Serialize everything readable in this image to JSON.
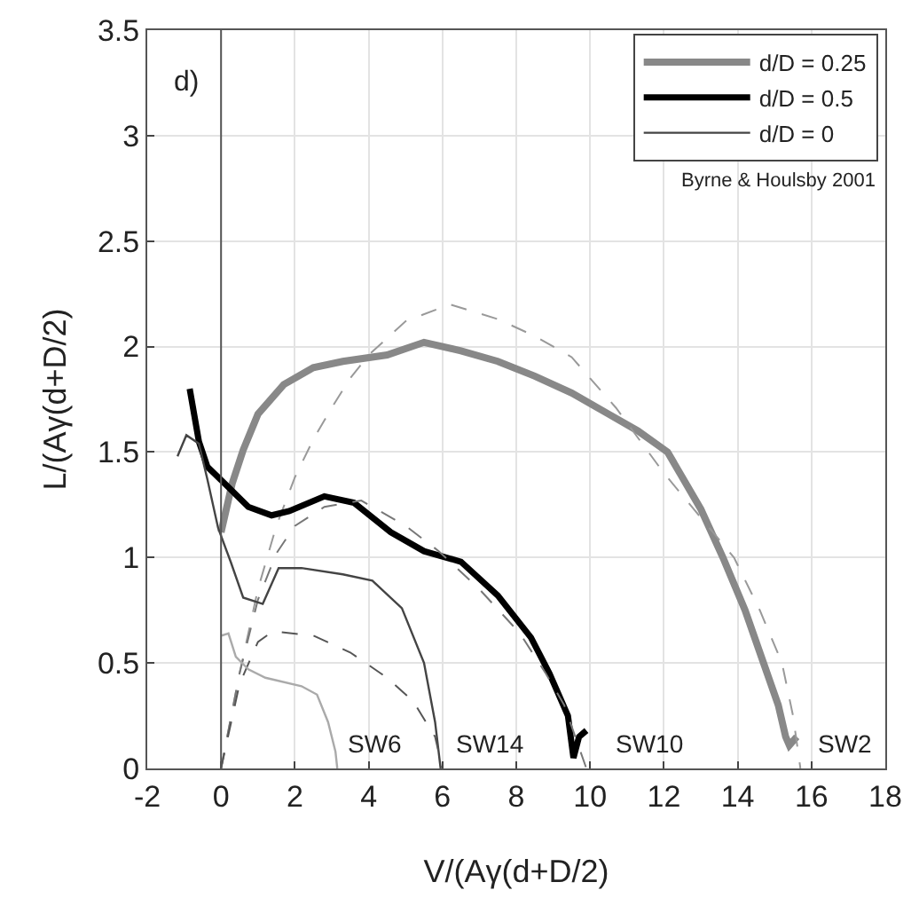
{
  "chart_data": {
    "type": "line",
    "xlabel": "V/(Aγ(d+D/2)",
    "ylabel": "L/(Aγ(d+D/2)",
    "xlim": [
      -2,
      18
    ],
    "xticks": [
      -2,
      0,
      2,
      4,
      6,
      8,
      10,
      12,
      14,
      16,
      18
    ],
    "ylim": [
      0,
      3.5
    ],
    "yticks": [
      0,
      0.5,
      1,
      1.5,
      2,
      2.5,
      3,
      3.5
    ],
    "grid": true,
    "legend": "top right",
    "marker": "none",
    "ref_lines": [
      {
        "axis": "x",
        "value": 0,
        "color": "#555555"
      }
    ],
    "annotations": [
      "d)",
      "Byrne & Houlsby 2001",
      "SW6",
      "SW14",
      "SW10",
      "SW2"
    ],
    "series": [
      {
        "name": "d/D = 0.25",
        "color": "#888888",
        "line_style": "solid",
        "x": [
          0.0,
          0.3,
          0.6,
          1.0,
          1.7,
          2.5,
          3.3,
          4.5,
          5.5,
          6.5,
          7.5,
          8.5,
          9.5,
          10.5,
          11.3,
          12.1,
          13.0,
          13.6,
          14.2,
          14.7,
          15.1,
          15.3,
          15.4,
          15.6
        ],
        "values": [
          1.12,
          1.35,
          1.51,
          1.68,
          1.82,
          1.9,
          1.93,
          1.96,
          2.02,
          1.98,
          1.93,
          1.86,
          1.78,
          1.68,
          1.6,
          1.5,
          1.23,
          1.0,
          0.75,
          0.5,
          0.3,
          0.15,
          0.11,
          0.15
        ]
      },
      {
        "color": "#999999",
        "line_style": "dashed",
        "x": [
          0,
          0.5,
          1,
          1.5,
          2,
          2.5,
          3,
          3.5,
          4,
          5,
          6.2,
          7.5,
          8.5,
          9.5,
          10.7,
          12,
          13.9,
          14.6,
          15.2,
          15.5,
          15.7
        ],
        "values": [
          0,
          0.45,
          0.85,
          1.15,
          1.38,
          1.56,
          1.71,
          1.85,
          1.96,
          2.12,
          2.2,
          2.13,
          2.05,
          1.95,
          1.71,
          1.4,
          1.0,
          0.75,
          0.5,
          0.25,
          0
        ]
      },
      {
        "name": "d/D = 0.5",
        "color": "#000000",
        "line_style": "solid",
        "x": [
          -0.85,
          -0.6,
          -0.37,
          0.1,
          0.74,
          1.37,
          1.85,
          2.8,
          3.6,
          4.6,
          5.5,
          6.5,
          7.5,
          8.4,
          8.9,
          9.4,
          9.55,
          9.7,
          9.9
        ],
        "values": [
          1.8,
          1.55,
          1.43,
          1.35,
          1.24,
          1.2,
          1.22,
          1.29,
          1.26,
          1.12,
          1.03,
          0.98,
          0.82,
          0.62,
          0.45,
          0.25,
          0.05,
          0.15,
          0.18
        ]
      },
      {
        "color": "#777777",
        "line_style": "dashed",
        "x": [
          0,
          0.5,
          1,
          1.5,
          2,
          2.8,
          3.8,
          5,
          5.9,
          7,
          8.1,
          8.8,
          9.3,
          9.6,
          9.9
        ],
        "values": [
          0,
          0.45,
          0.8,
          1.02,
          1.15,
          1.24,
          1.27,
          1.15,
          1.03,
          0.85,
          0.64,
          0.45,
          0.3,
          0.15,
          0
        ]
      },
      {
        "name": "d/D = 0",
        "color": "#444444",
        "line_style": "solid",
        "x": [
          -1.18,
          -0.94,
          -0.6,
          -0.37,
          -0.08,
          0.26,
          0.6,
          1.13,
          1.56,
          2.18,
          3.3,
          4.1,
          4.9,
          5.5,
          5.8,
          5.95
        ],
        "values": [
          1.48,
          1.58,
          1.54,
          1.37,
          1.14,
          0.98,
          0.81,
          0.78,
          0.95,
          0.95,
          0.92,
          0.89,
          0.76,
          0.5,
          0.22,
          0
        ]
      },
      {
        "color": "#555555",
        "line_style": "dashed",
        "x": [
          0,
          0.5,
          1.0,
          1.4,
          2.5,
          3.5,
          4.5,
          5.2,
          5.8,
          6.0
        ],
        "values": [
          0,
          0.4,
          0.6,
          0.65,
          0.63,
          0.55,
          0.43,
          0.32,
          0.15,
          0
        ]
      },
      {
        "color": "#aaaaaa",
        "line_style": "solid",
        "x": [
          0.02,
          0.2,
          0.4,
          0.74,
          1.2,
          2.18,
          2.6,
          2.9,
          3.1,
          3.15
        ],
        "values": [
          0.63,
          0.64,
          0.53,
          0.47,
          0.43,
          0.39,
          0.35,
          0.22,
          0.08,
          0
        ]
      }
    ]
  }
}
